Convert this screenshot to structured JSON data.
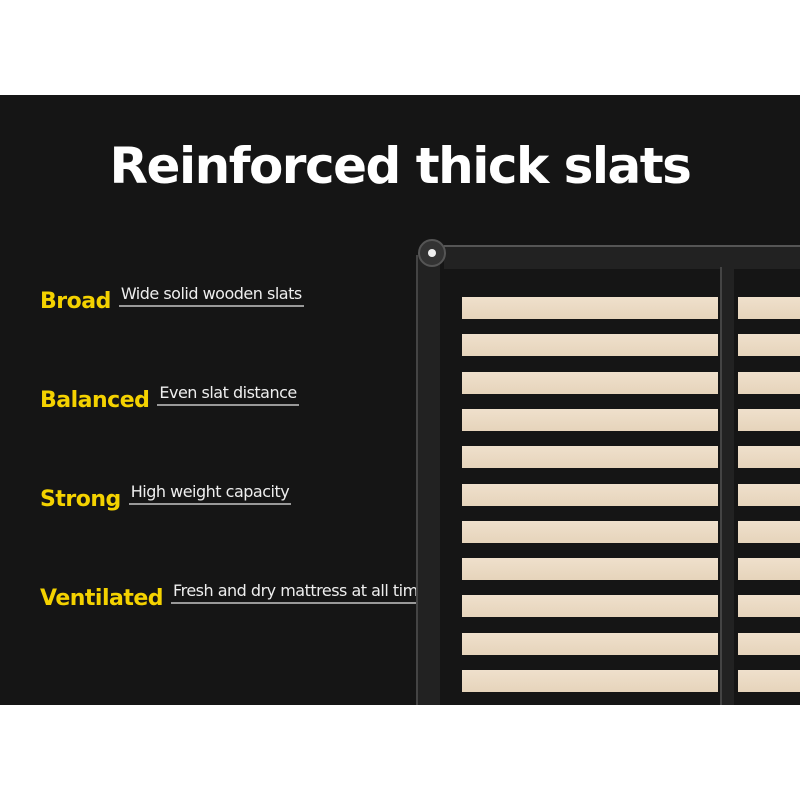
{
  "title": "Reinforced thick slats",
  "features": [
    {
      "label": "Broad",
      "description": "Wide solid wooden slats"
    },
    {
      "label": "Balanced",
      "description": "Even slat distance"
    },
    {
      "label": "Strong",
      "description": "High weight capacity"
    },
    {
      "label": "Ventilated",
      "description": "Fresh and dry mattress at all times"
    }
  ],
  "colors": {
    "background": "#151515",
    "accent": "#f4d200",
    "slat": "#ecdcc5"
  }
}
